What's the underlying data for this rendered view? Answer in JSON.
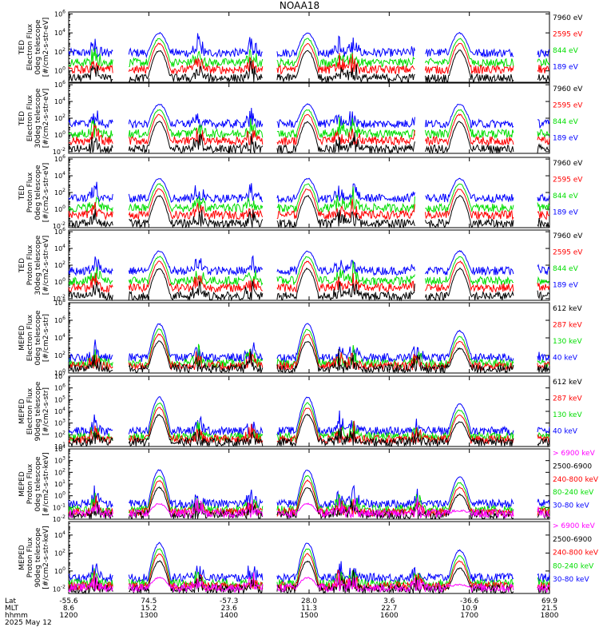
{
  "title": "NOAA18",
  "date_label": "2025 May 12",
  "colors": {
    "blue": "#0000ff",
    "red": "#ff0000",
    "green": "#00dd00",
    "black": "#000000",
    "magenta": "#ff00ff"
  },
  "chart_data": [
    {
      "type": "line",
      "ylabel": [
        "TED",
        "Electron Flux",
        "0deg telescope",
        "[#/cm2-s-str-eV]"
      ],
      "yticks": [
        "10^0",
        "10^2",
        "10^4",
        "10^6"
      ],
      "ylog": [
        -1.2,
        6.2
      ],
      "legend": [
        {
          "label": "7960 eV",
          "color": "black"
        },
        {
          "label": "2595 eV",
          "color": "red"
        },
        {
          "label": "844 eV",
          "color": "green"
        },
        {
          "label": "189 eV",
          "color": "blue"
        }
      ]
    },
    {
      "type": "line",
      "ylabel": [
        "TED",
        "Electron Flux",
        "30deg telescope",
        "[#/cm2-s-str-eV]"
      ],
      "yticks": [
        "10^-2",
        "10^0",
        "10^2",
        "10^4",
        "10^6"
      ],
      "ylog": [
        -2.2,
        6.2
      ],
      "legend": [
        {
          "label": "7960 eV",
          "color": "black"
        },
        {
          "label": "2595 eV",
          "color": "red"
        },
        {
          "label": "844 eV",
          "color": "green"
        },
        {
          "label": "189 eV",
          "color": "blue"
        }
      ]
    },
    {
      "type": "line",
      "ylabel": [
        "TED",
        "Proton Flux",
        "0deg telescope",
        "[#/cm2-s-str-eV]"
      ],
      "yticks": [
        "10^-2",
        "10^0",
        "10^2",
        "10^4",
        "10^6"
      ],
      "ylog": [
        -2.2,
        6.2
      ],
      "legend": [
        {
          "label": "7960 eV",
          "color": "black"
        },
        {
          "label": "2595 eV",
          "color": "red"
        },
        {
          "label": "844 eV",
          "color": "green"
        },
        {
          "label": "189 eV",
          "color": "blue"
        }
      ]
    },
    {
      "type": "line",
      "ylabel": [
        "TED",
        "Proton Flux",
        "30deg telescope",
        "[#/cm2-s-str-eV]"
      ],
      "yticks": [
        "10^-2",
        "10^0",
        "10^2",
        "10^4",
        "10^6"
      ],
      "ylog": [
        -2.2,
        6.2
      ],
      "legend": [
        {
          "label": "7960 eV",
          "color": "black"
        },
        {
          "label": "2595 eV",
          "color": "red"
        },
        {
          "label": "844 eV",
          "color": "green"
        },
        {
          "label": "189 eV",
          "color": "blue"
        }
      ]
    },
    {
      "type": "line",
      "ylabel": [
        "MEPED",
        "Electron Flux",
        "0deg telescope",
        "[#/cm2-s-str]"
      ],
      "yticks": [
        "10^0",
        "10^2",
        "10^4",
        "10^6",
        "10^8"
      ],
      "ylog": [
        0,
        8
      ],
      "legend": [
        {
          "label": "612 keV",
          "color": "black"
        },
        {
          "label": "287 keV",
          "color": "red"
        },
        {
          "label": "130 keV",
          "color": "green"
        },
        {
          "label": "40 keV",
          "color": "blue"
        }
      ]
    },
    {
      "type": "line",
      "ylabel": [
        "MEPED",
        "Electron Flux",
        "90deg telescope",
        "[#/cm2-s-str]"
      ],
      "yticks": [
        "10^1",
        "10^2",
        "10^3",
        "10^4",
        "10^5",
        "10^6",
        "10^7"
      ],
      "ylog": [
        1,
        7
      ],
      "legend": [
        {
          "label": "612 keV",
          "color": "black"
        },
        {
          "label": "287 keV",
          "color": "red"
        },
        {
          "label": "130 keV",
          "color": "green"
        },
        {
          "label": "40 keV",
          "color": "blue"
        }
      ]
    },
    {
      "type": "line",
      "ylabel": [
        "MEPED",
        "Proton Flux",
        "0deg telescope",
        "[#/cm2-s-str-keV]"
      ],
      "yticks": [
        "10^-2",
        "10^-1",
        "10^0",
        "10^1",
        "10^2",
        "10^3",
        "10^4"
      ],
      "ylog": [
        -2,
        4
      ],
      "legend": [
        {
          "label": "> 6900 keV",
          "color": "magenta"
        },
        {
          "label": "2500-6900",
          "color": "black"
        },
        {
          "label": "240-800 keV",
          "color": "red"
        },
        {
          "label": "80-240 keV",
          "color": "green"
        },
        {
          "label": "30-80 keV",
          "color": "blue"
        }
      ]
    },
    {
      "type": "line",
      "ylabel": [
        "MEPED",
        "Proton Flux",
        "90deg telescope",
        "[#/cm2-s-str-keV]"
      ],
      "yticks": [
        "10^-2",
        "10^0",
        "10^2",
        "10^4"
      ],
      "ylog": [
        -2.5,
        5.5
      ],
      "legend": [
        {
          "label": "> 6900 keV",
          "color": "magenta"
        },
        {
          "label": "2500-6900",
          "color": "black"
        },
        {
          "label": "240-800 keV",
          "color": "red"
        },
        {
          "label": "80-240 keV",
          "color": "green"
        },
        {
          "label": "30-80 keV",
          "color": "blue"
        }
      ]
    }
  ],
  "x_axis": {
    "row_labels": [
      "Lat",
      "MLT",
      "hhmm"
    ],
    "ticks": [
      {
        "lat": "-55.6",
        "mlt": "8.6",
        "hhmm": "1200"
      },
      {
        "lat": "74.5",
        "mlt": "15.2",
        "hhmm": "1300"
      },
      {
        "lat": "-57.3",
        "mlt": "23.6",
        "hhmm": "1400"
      },
      {
        "lat": "28.0",
        "mlt": "11.3",
        "hhmm": "1500"
      },
      {
        "lat": "3.6",
        "mlt": "22.7",
        "hhmm": "1600"
      },
      {
        "lat": "-36.6",
        "mlt": "10.9",
        "hhmm": "1700"
      },
      {
        "lat": "69.9",
        "mlt": "21.5",
        "hhmm": "1800"
      }
    ]
  }
}
